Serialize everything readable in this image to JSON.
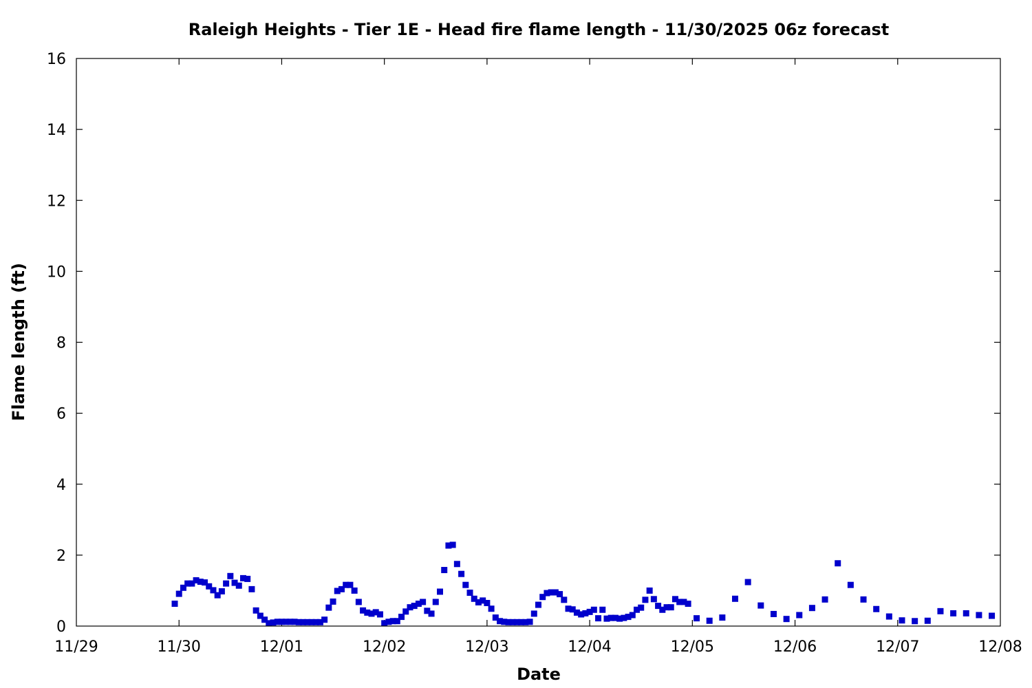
{
  "chart_data": {
    "type": "scatter",
    "title": "Raleigh Heights - Tier 1E - Head fire flame length - 11/30/2025 06z forecast",
    "xlabel": "Date",
    "ylabel": "Flame length (ft)",
    "x_ticks": [
      "11/29",
      "11/30",
      "12/01",
      "12/02",
      "12/03",
      "12/04",
      "12/05",
      "12/06",
      "12/07",
      "12/08"
    ],
    "y_ticks": [
      "0",
      "2",
      "4",
      "6",
      "8",
      "10",
      "12",
      "14",
      "16"
    ],
    "xlim": [
      "2025-11-29 00:00",
      "2025-12-08 00:00"
    ],
    "ylim": [
      0,
      16
    ],
    "grid": false,
    "legend": "none",
    "marker_color": "#0000cc",
    "series": [
      {
        "points": [
          [
            "2025-11-29 23:00",
            0.63
          ],
          [
            "2025-11-30 00:00",
            0.91
          ],
          [
            "2025-11-30 01:00",
            1.08
          ],
          [
            "2025-11-30 02:00",
            1.2
          ],
          [
            "2025-11-30 03:00",
            1.2
          ],
          [
            "2025-11-30 04:00",
            1.29
          ],
          [
            "2025-11-30 05:00",
            1.25
          ],
          [
            "2025-11-30 06:00",
            1.23
          ],
          [
            "2025-11-30 07:00",
            1.12
          ],
          [
            "2025-11-30 08:00",
            1.01
          ],
          [
            "2025-11-30 09:00",
            0.87
          ],
          [
            "2025-11-30 10:00",
            0.98
          ],
          [
            "2025-11-30 11:00",
            1.2
          ],
          [
            "2025-11-30 12:00",
            1.41
          ],
          [
            "2025-11-30 13:00",
            1.22
          ],
          [
            "2025-11-30 14:00",
            1.14
          ],
          [
            "2025-11-30 15:00",
            1.35
          ],
          [
            "2025-11-30 16:00",
            1.33
          ],
          [
            "2025-11-30 17:00",
            1.04
          ],
          [
            "2025-11-30 18:00",
            0.44
          ],
          [
            "2025-11-30 19:00",
            0.29
          ],
          [
            "2025-11-30 20:00",
            0.18
          ],
          [
            "2025-11-30 21:00",
            0.08
          ],
          [
            "2025-11-30 22:00",
            0.1
          ],
          [
            "2025-11-30 23:00",
            0.12
          ],
          [
            "2025-12-01 00:00",
            0.12
          ],
          [
            "2025-12-01 01:00",
            0.12
          ],
          [
            "2025-12-01 02:00",
            0.12
          ],
          [
            "2025-12-01 03:00",
            0.12
          ],
          [
            "2025-12-01 04:00",
            0.11
          ],
          [
            "2025-12-01 05:00",
            0.11
          ],
          [
            "2025-12-01 06:00",
            0.11
          ],
          [
            "2025-12-01 07:00",
            0.11
          ],
          [
            "2025-12-01 08:00",
            0.11
          ],
          [
            "2025-12-01 09:00",
            0.11
          ],
          [
            "2025-12-01 10:00",
            0.18
          ],
          [
            "2025-12-01 11:00",
            0.52
          ],
          [
            "2025-12-01 12:00",
            0.69
          ],
          [
            "2025-12-01 13:00",
            0.99
          ],
          [
            "2025-12-01 14:00",
            1.04
          ],
          [
            "2025-12-01 15:00",
            1.16
          ],
          [
            "2025-12-01 16:00",
            1.16
          ],
          [
            "2025-12-01 17:00",
            1.0
          ],
          [
            "2025-12-01 18:00",
            0.68
          ],
          [
            "2025-12-01 19:00",
            0.44
          ],
          [
            "2025-12-01 20:00",
            0.38
          ],
          [
            "2025-12-01 21:00",
            0.35
          ],
          [
            "2025-12-01 22:00",
            0.39
          ],
          [
            "2025-12-01 23:00",
            0.33
          ],
          [
            "2025-12-02 00:00",
            0.08
          ],
          [
            "2025-12-02 01:00",
            0.12
          ],
          [
            "2025-12-02 02:00",
            0.14
          ],
          [
            "2025-12-02 03:00",
            0.14
          ],
          [
            "2025-12-02 04:00",
            0.26
          ],
          [
            "2025-12-02 05:00",
            0.41
          ],
          [
            "2025-12-02 06:00",
            0.53
          ],
          [
            "2025-12-02 07:00",
            0.57
          ],
          [
            "2025-12-02 08:00",
            0.63
          ],
          [
            "2025-12-02 09:00",
            0.68
          ],
          [
            "2025-12-02 10:00",
            0.43
          ],
          [
            "2025-12-02 11:00",
            0.35
          ],
          [
            "2025-12-02 12:00",
            0.68
          ],
          [
            "2025-12-02 13:00",
            0.97
          ],
          [
            "2025-12-02 14:00",
            1.58
          ],
          [
            "2025-12-02 15:00",
            2.27
          ],
          [
            "2025-12-02 16:00",
            2.29
          ],
          [
            "2025-12-02 17:00",
            1.75
          ],
          [
            "2025-12-02 18:00",
            1.47
          ],
          [
            "2025-12-02 19:00",
            1.16
          ],
          [
            "2025-12-02 20:00",
            0.94
          ],
          [
            "2025-12-02 21:00",
            0.77
          ],
          [
            "2025-12-02 22:00",
            0.67
          ],
          [
            "2025-12-02 23:00",
            0.72
          ],
          [
            "2025-12-03 00:00",
            0.65
          ],
          [
            "2025-12-03 01:00",
            0.49
          ],
          [
            "2025-12-03 02:00",
            0.24
          ],
          [
            "2025-12-03 03:00",
            0.14
          ],
          [
            "2025-12-03 04:00",
            0.12
          ],
          [
            "2025-12-03 05:00",
            0.11
          ],
          [
            "2025-12-03 06:00",
            0.11
          ],
          [
            "2025-12-03 07:00",
            0.11
          ],
          [
            "2025-12-03 08:00",
            0.11
          ],
          [
            "2025-12-03 09:00",
            0.11
          ],
          [
            "2025-12-03 10:00",
            0.12
          ],
          [
            "2025-12-03 11:00",
            0.35
          ],
          [
            "2025-12-03 12:00",
            0.6
          ],
          [
            "2025-12-03 13:00",
            0.82
          ],
          [
            "2025-12-03 14:00",
            0.93
          ],
          [
            "2025-12-03 15:00",
            0.95
          ],
          [
            "2025-12-03 16:00",
            0.95
          ],
          [
            "2025-12-03 17:00",
            0.9
          ],
          [
            "2025-12-03 18:00",
            0.74
          ],
          [
            "2025-12-03 19:00",
            0.49
          ],
          [
            "2025-12-03 20:00",
            0.47
          ],
          [
            "2025-12-03 21:00",
            0.38
          ],
          [
            "2025-12-03 22:00",
            0.33
          ],
          [
            "2025-12-03 23:00",
            0.36
          ],
          [
            "2025-12-04 00:00",
            0.4
          ],
          [
            "2025-12-04 01:00",
            0.46
          ],
          [
            "2025-12-04 02:00",
            0.22
          ],
          [
            "2025-12-04 03:00",
            0.46
          ],
          [
            "2025-12-04 04:00",
            0.21
          ],
          [
            "2025-12-04 05:00",
            0.23
          ],
          [
            "2025-12-04 06:00",
            0.23
          ],
          [
            "2025-12-04 07:00",
            0.21
          ],
          [
            "2025-12-04 08:00",
            0.23
          ],
          [
            "2025-12-04 09:00",
            0.26
          ],
          [
            "2025-12-04 10:00",
            0.31
          ],
          [
            "2025-12-04 11:00",
            0.46
          ],
          [
            "2025-12-04 12:00",
            0.52
          ],
          [
            "2025-12-04 13:00",
            0.74
          ],
          [
            "2025-12-04 14:00",
            1.0
          ],
          [
            "2025-12-04 15:00",
            0.76
          ],
          [
            "2025-12-04 16:00",
            0.57
          ],
          [
            "2025-12-04 17:00",
            0.46
          ],
          [
            "2025-12-04 18:00",
            0.53
          ],
          [
            "2025-12-04 19:00",
            0.53
          ],
          [
            "2025-12-04 20:00",
            0.76
          ],
          [
            "2025-12-04 21:00",
            0.68
          ],
          [
            "2025-12-04 22:00",
            0.68
          ],
          [
            "2025-12-04 23:00",
            0.63
          ],
          [
            "2025-12-05 01:00",
            0.22
          ],
          [
            "2025-12-05 04:00",
            0.15
          ],
          [
            "2025-12-05 07:00",
            0.24
          ],
          [
            "2025-12-05 10:00",
            0.77
          ],
          [
            "2025-12-05 13:00",
            1.24
          ],
          [
            "2025-12-05 16:00",
            0.58
          ],
          [
            "2025-12-05 19:00",
            0.34
          ],
          [
            "2025-12-05 22:00",
            0.2
          ],
          [
            "2025-12-06 01:00",
            0.31
          ],
          [
            "2025-12-06 04:00",
            0.51
          ],
          [
            "2025-12-06 07:00",
            0.75
          ],
          [
            "2025-12-06 10:00",
            1.77
          ],
          [
            "2025-12-06 13:00",
            1.16
          ],
          [
            "2025-12-06 16:00",
            0.75
          ],
          [
            "2025-12-06 19:00",
            0.48
          ],
          [
            "2025-12-06 22:00",
            0.27
          ],
          [
            "2025-12-07 01:00",
            0.16
          ],
          [
            "2025-12-07 04:00",
            0.14
          ],
          [
            "2025-12-07 07:00",
            0.15
          ],
          [
            "2025-12-07 10:00",
            0.42
          ],
          [
            "2025-12-07 13:00",
            0.36
          ],
          [
            "2025-12-07 16:00",
            0.36
          ],
          [
            "2025-12-07 19:00",
            0.31
          ],
          [
            "2025-12-07 22:00",
            0.29
          ]
        ]
      }
    ]
  }
}
